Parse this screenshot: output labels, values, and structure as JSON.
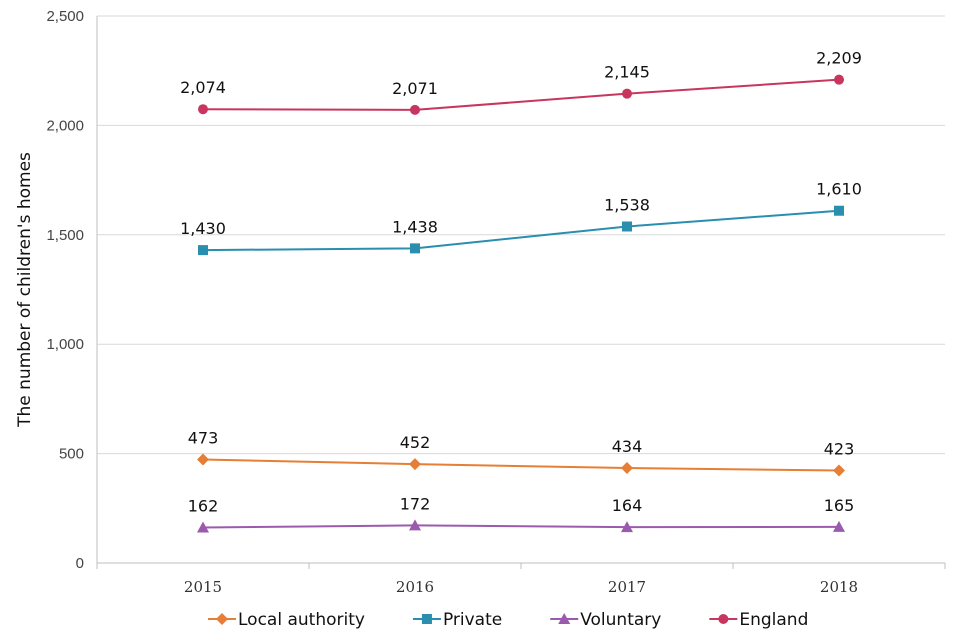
{
  "chart_data": {
    "type": "line",
    "title": "",
    "xlabel": "",
    "ylabel": "The number of children's homes",
    "categories": [
      "2015",
      "2016",
      "2017",
      "2018"
    ],
    "ylim": [
      0,
      2500
    ],
    "yticks": [
      0,
      500,
      1000,
      1500,
      2000,
      2500
    ],
    "ytick_labels": [
      "0",
      "500",
      "1,000",
      "1,500",
      "2,000",
      "2,500"
    ],
    "grid": true,
    "legend_position": "bottom",
    "series": [
      {
        "name": "Local authority",
        "color": "#E67E35",
        "marker": "diamond",
        "values": [
          473,
          452,
          434,
          423
        ],
        "labels": [
          "473",
          "452",
          "434",
          "423"
        ]
      },
      {
        "name": "Private",
        "color": "#2A8EAE",
        "marker": "square",
        "values": [
          1430,
          1438,
          1538,
          1610
        ],
        "labels": [
          "1,430",
          "1,438",
          "1,538",
          "1,610"
        ]
      },
      {
        "name": "Voluntary",
        "color": "#9B5AAE",
        "marker": "triangle",
        "values": [
          162,
          172,
          164,
          165
        ],
        "labels": [
          "162",
          "172",
          "164",
          "165"
        ]
      },
      {
        "name": "England",
        "color": "#C8365F",
        "marker": "circle",
        "values": [
          2074,
          2071,
          2145,
          2209
        ],
        "labels": [
          "2,074",
          "2,071",
          "2,145",
          "2,209"
        ]
      }
    ]
  }
}
